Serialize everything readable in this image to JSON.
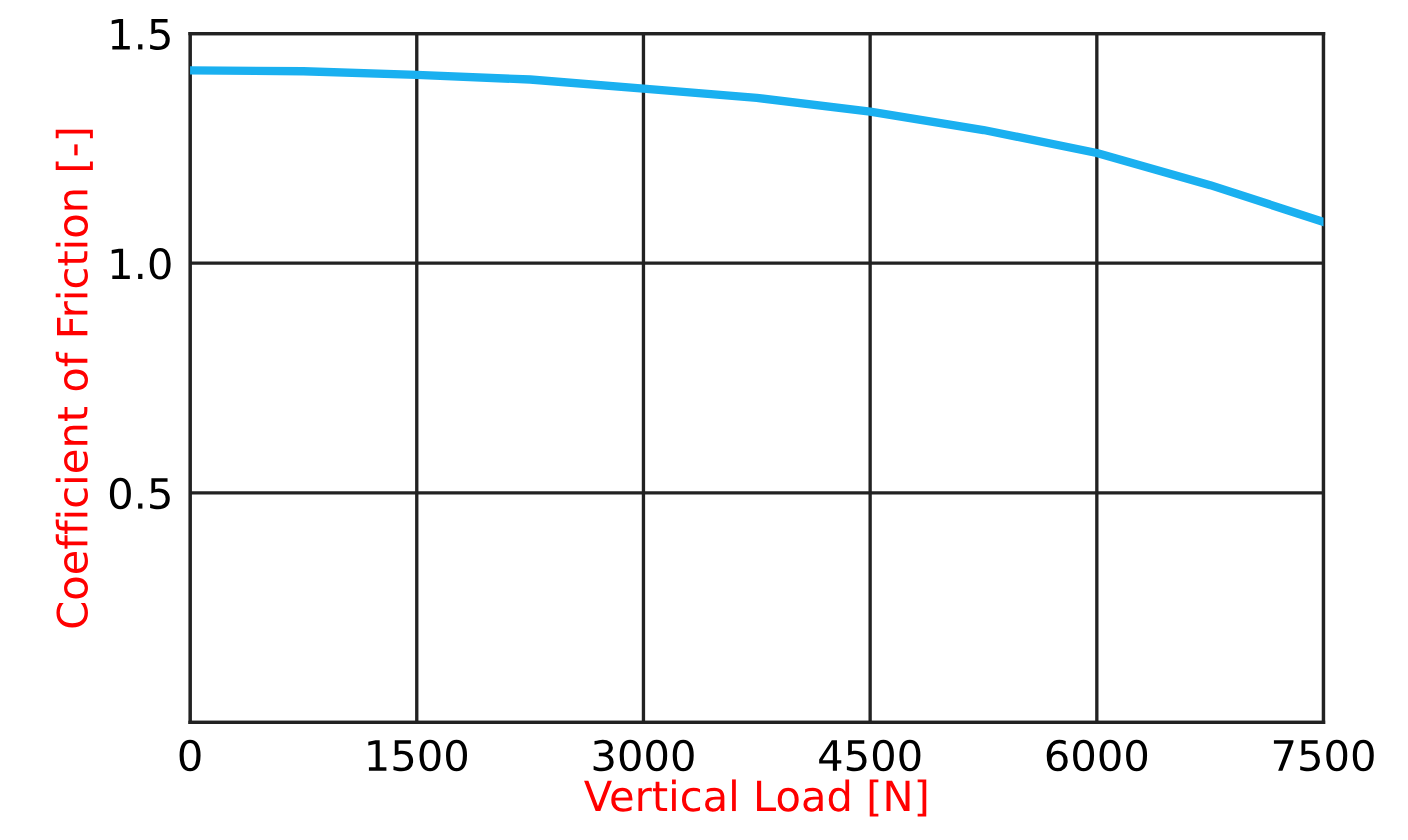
{
  "chart_data": {
    "type": "line",
    "xlabel": "Vertical Load [N]",
    "ylabel": "Coefficient of Friction [-]",
    "x": [
      0,
      750,
      1500,
      2250,
      3000,
      3750,
      4500,
      5250,
      6000,
      6750,
      7500
    ],
    "series": [
      {
        "color": "#1ab0f0",
        "values": [
          1.42,
          1.418,
          1.41,
          1.4,
          1.38,
          1.36,
          1.33,
          1.29,
          1.24,
          1.17,
          1.09
        ]
      }
    ],
    "xlim": [
      0,
      7500
    ],
    "ylim": [
      0,
      1.5
    ],
    "xticks": [
      0,
      1500,
      3000,
      4500,
      6000,
      7500
    ],
    "yticks": [
      {
        "value": 0,
        "label": null
      },
      0.5,
      {
        "value": 1,
        "label": "1.0"
      },
      1.5
    ],
    "grid": true,
    "marker": "none",
    "line_style": "solid"
  }
}
